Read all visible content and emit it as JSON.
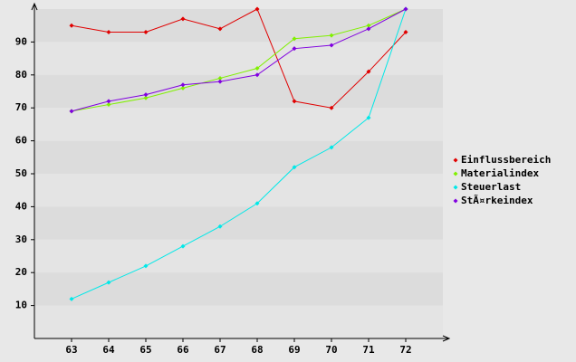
{
  "chart_data": {
    "type": "line",
    "categories": [
      "63",
      "64",
      "65",
      "66",
      "67",
      "68",
      "69",
      "70",
      "71",
      "72"
    ],
    "series": [
      {
        "name": "Einflussbereich",
        "color": "#e00000",
        "values": [
          95,
          93,
          93,
          97,
          94,
          100,
          72,
          70,
          81,
          93
        ]
      },
      {
        "name": "Materialindex",
        "color": "#80f000",
        "values": [
          69,
          71,
          73,
          76,
          79,
          82,
          91,
          92,
          95,
          100
        ]
      },
      {
        "name": "Steuerlast",
        "color": "#00e8e8",
        "values": [
          12,
          17,
          22,
          28,
          34,
          41,
          52,
          58,
          67,
          100
        ]
      },
      {
        "name": "StÃ¤rkeindex",
        "color": "#8000e0",
        "values": [
          69,
          72,
          74,
          77,
          78,
          80,
          88,
          89,
          94,
          100
        ]
      }
    ],
    "ylim": [
      0,
      100
    ],
    "yticks": [
      10,
      20,
      30,
      40,
      50,
      60,
      70,
      80,
      90
    ],
    "grid": true,
    "legend": "right"
  }
}
